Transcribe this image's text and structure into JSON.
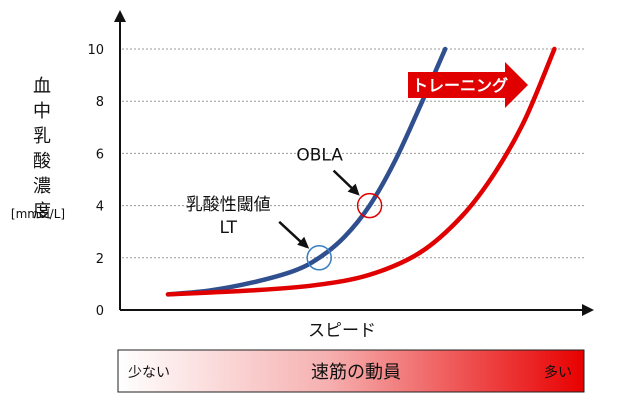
{
  "chart_data": {
    "type": "line",
    "ylabel": "血中乳酸濃度",
    "yunit": "[mmol/L]",
    "xlabel": "スピード",
    "ylim": [
      0,
      10
    ],
    "yticks": [
      "0",
      "2",
      "4",
      "6",
      "8",
      "10"
    ],
    "grid": "horizontal dashed",
    "series": [
      {
        "color": "#2F4F8F",
        "points": [
          [
            0.0,
            0.6
          ],
          [
            1.0,
            0.75
          ],
          [
            2.0,
            1.05
          ],
          [
            3.0,
            1.5
          ],
          [
            3.6,
            2.0
          ],
          [
            4.2,
            2.8
          ],
          [
            4.8,
            4.0
          ],
          [
            5.4,
            5.7
          ],
          [
            6.0,
            7.8
          ],
          [
            6.6,
            10.0
          ]
        ]
      },
      {
        "color": "#E00000",
        "points": [
          [
            0.0,
            0.6
          ],
          [
            2.0,
            0.75
          ],
          [
            3.5,
            0.95
          ],
          [
            4.8,
            1.35
          ],
          [
            6.0,
            2.2
          ],
          [
            7.0,
            3.6
          ],
          [
            7.8,
            5.3
          ],
          [
            8.5,
            7.3
          ],
          [
            9.2,
            10.0
          ]
        ]
      }
    ],
    "annotations": [
      {
        "label": "OBLA",
        "at": [
          4.8,
          4.0
        ],
        "circle_color": "#E00000"
      },
      {
        "label": "乳酸性閾値",
        "label2": "LT",
        "at": [
          3.6,
          2.0
        ],
        "circle_color": "#3A7FC4"
      }
    ]
  },
  "training_arrow": {
    "label": "トレーニング",
    "color": "#E00000"
  },
  "bottom_bar": {
    "left_label": "少ない",
    "center_label": "速筋の動員",
    "right_label": "多い"
  }
}
